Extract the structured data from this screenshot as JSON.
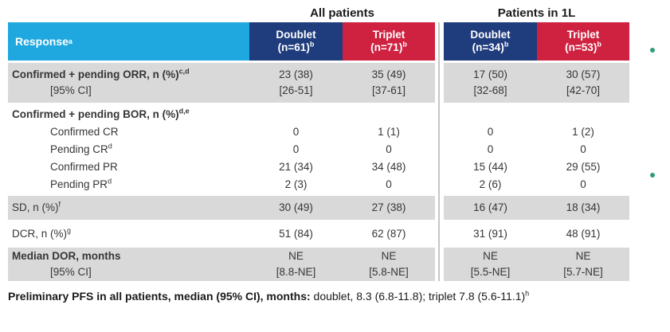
{
  "colors": {
    "cyan_header": "#1FA7DF",
    "navy_column": "#1F3C7D",
    "red_column": "#CF2140",
    "row_shading": "#D9D9D9",
    "divider": "#C6C6C6",
    "bullet_green": "#2F9E78"
  },
  "group_headers": [
    {
      "label": "All patients"
    },
    {
      "label": "Patients in 1L"
    }
  ],
  "header": {
    "response": {
      "label": "Response",
      "sup": "a"
    },
    "columns": [
      {
        "name": "Doublet",
        "n": "(n=61)",
        "sup": "b"
      },
      {
        "name": "Triplet",
        "n": "(n=71)",
        "sup": "b"
      },
      {
        "name": "Doublet",
        "n": "(n=34)",
        "sup": "b"
      },
      {
        "name": "Triplet",
        "n": "(n=53)",
        "sup": "b"
      }
    ]
  },
  "rows": [
    {
      "label": "Confirmed + pending ORR, n (%)",
      "sup": "c,d",
      "label2": "[95% CI]",
      "values": [
        "23 (38)",
        "35 (49)",
        "17 (50)",
        "30 (57)"
      ],
      "values2": [
        "[26-51]",
        "[37-61]",
        "[32-68]",
        "[42-70]"
      ]
    },
    {
      "label": "Confirmed + pending BOR, n (%)",
      "sup": "d,e"
    },
    {
      "label": "Confirmed CR",
      "values": [
        "0",
        "1 (1)",
        "0",
        "1 (2)"
      ]
    },
    {
      "label": "Pending CR",
      "sup": "d",
      "values": [
        "0",
        "0",
        "0",
        "0"
      ]
    },
    {
      "label": "Confirmed PR",
      "values": [
        "21 (34)",
        "34 (48)",
        "15 (44)",
        "29 (55)"
      ]
    },
    {
      "label": "Pending PR",
      "sup": "d",
      "values": [
        "2 (3)",
        "0",
        "2 (6)",
        "0"
      ]
    },
    {
      "label": "SD, n (%)",
      "sup": "f",
      "values": [
        "30 (49)",
        "27 (38)",
        "16 (47)",
        "18 (34)"
      ]
    },
    {
      "label": "DCR, n (%)",
      "sup": "g",
      "values": [
        "51 (84)",
        "62 (87)",
        "31 (91)",
        "48 (91)"
      ]
    },
    {
      "label": "Median DOR, months",
      "label2": "[95% CI]",
      "values": [
        "NE",
        "NE",
        "NE",
        "NE"
      ],
      "values2": [
        "[8.8-NE]",
        "[5.8-NE]",
        "[5.5-NE]",
        "[5.7-NE]"
      ]
    }
  ],
  "footer": {
    "bold": "Preliminary PFS in all patients, median (95% CI), months:",
    "regular": " doublet, 8.3 (6.8-11.8); triplet 7.8 (5.6-11.1)",
    "sup": "h"
  }
}
